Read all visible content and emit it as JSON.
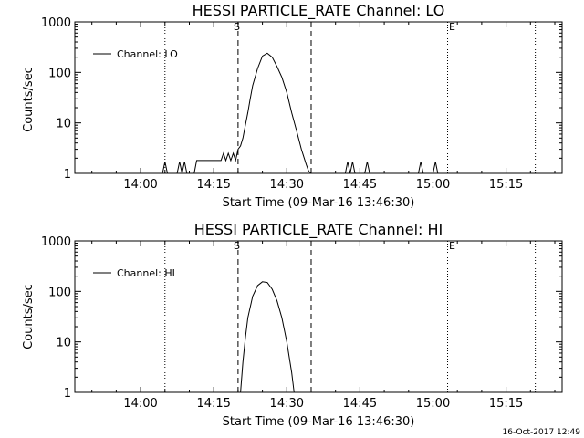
{
  "chart_data": [
    {
      "type": "line",
      "title": "HESSI PARTICLE_RATE Channel: LO",
      "xlabel": "Start Time (09-Mar-16 13:46:30)",
      "ylabel": "Counts/sec",
      "yscale": "log",
      "ylim": [
        1,
        1000
      ],
      "xlim": [
        "13:46:30",
        "15:26:30"
      ],
      "x_ticks": [
        "14:00",
        "14:15",
        "14:30",
        "14:45",
        "15:00",
        "15:15"
      ],
      "y_ticks": [
        "1",
        "10",
        "100",
        "1000"
      ],
      "legend": {
        "position": "top-left",
        "entries": [
          "Channel: LO"
        ]
      },
      "markers": {
        "start_label": "S",
        "end_label": "E",
        "start_dashed": [
          "14:20:00",
          "14:35:00"
        ],
        "dotted": [
          "14:05:00",
          "15:03:00",
          "15:21:00"
        ]
      },
      "series": [
        {
          "name": "Channel: LO",
          "x": [
            "14:04:30",
            "14:05:00",
            "14:05:30",
            "14:07:30",
            "14:08:00",
            "14:08:30",
            "14:09:00",
            "14:09:30",
            "14:11:00",
            "14:11:30",
            "14:12:00",
            "14:12:30",
            "14:16:30",
            "14:17:00",
            "14:17:30",
            "14:18:00",
            "14:18:30",
            "14:19:00",
            "14:19:30",
            "14:20:00",
            "14:20:30",
            "14:21:00",
            "14:21:30",
            "14:22:00",
            "14:22:30",
            "14:23:00",
            "14:24:00",
            "14:25:00",
            "14:26:00",
            "14:27:00",
            "14:28:00",
            "14:29:00",
            "14:30:00",
            "14:31:00",
            "14:32:00",
            "14:33:00",
            "14:34:00",
            "14:34:30",
            "14:35:00"
          ],
          "values": [
            1,
            1.7,
            1,
            1,
            1.7,
            1,
            1.7,
            1,
            1,
            1.8,
            1.8,
            1.8,
            1.8,
            2.5,
            1.8,
            2.5,
            1.8,
            2.5,
            1.8,
            3,
            3.5,
            5,
            9,
            16,
            30,
            55,
            120,
            210,
            240,
            200,
            130,
            80,
            40,
            16,
            7,
            3,
            1.5,
            1.1,
            1
          ]
        },
        {
          "name": "",
          "x": [
            "14:42:00",
            "14:42:30",
            "14:43:00",
            "14:43:30",
            "14:44:00",
            "14:46:00",
            "14:46:30",
            "14:47:00",
            "14:57:00",
            "14:57:30",
            "14:58:00",
            "15:00:00",
            "15:00:30",
            "15:01:00"
          ],
          "values": [
            1,
            1.7,
            1,
            1.7,
            1,
            1,
            1.7,
            1,
            1,
            1.7,
            1,
            1,
            1.7,
            1
          ]
        }
      ]
    },
    {
      "type": "line",
      "title": "HESSI PARTICLE_RATE Channel: HI",
      "xlabel": "Start Time (09-Mar-16 13:46:30)",
      "ylabel": "Counts/sec",
      "yscale": "log",
      "ylim": [
        1,
        1000
      ],
      "xlim": [
        "13:46:30",
        "15:26:30"
      ],
      "x_ticks": [
        "14:00",
        "14:15",
        "14:30",
        "14:45",
        "15:00",
        "15:15"
      ],
      "y_ticks": [
        "1",
        "10",
        "100",
        "1000"
      ],
      "legend": {
        "position": "top-left",
        "entries": [
          "Channel: HI"
        ]
      },
      "markers": {
        "start_label": "S",
        "end_label": "E",
        "start_dashed": [
          "14:20:00",
          "14:35:00"
        ],
        "dotted": [
          "14:05:00",
          "15:03:00",
          "15:21:00"
        ]
      },
      "series": [
        {
          "name": "Channel: HI",
          "x": [
            "14:20:30",
            "14:21:00",
            "14:21:30",
            "14:22:00",
            "14:23:00",
            "14:24:00",
            "14:25:00",
            "14:26:00",
            "14:27:00",
            "14:28:00",
            "14:29:00",
            "14:30:00",
            "14:31:00",
            "14:31:30"
          ],
          "values": [
            1,
            4,
            12,
            30,
            80,
            130,
            155,
            150,
            110,
            65,
            30,
            10,
            2.5,
            1
          ]
        }
      ]
    }
  ],
  "footer_stamp": "16-Oct-2017 12:49"
}
